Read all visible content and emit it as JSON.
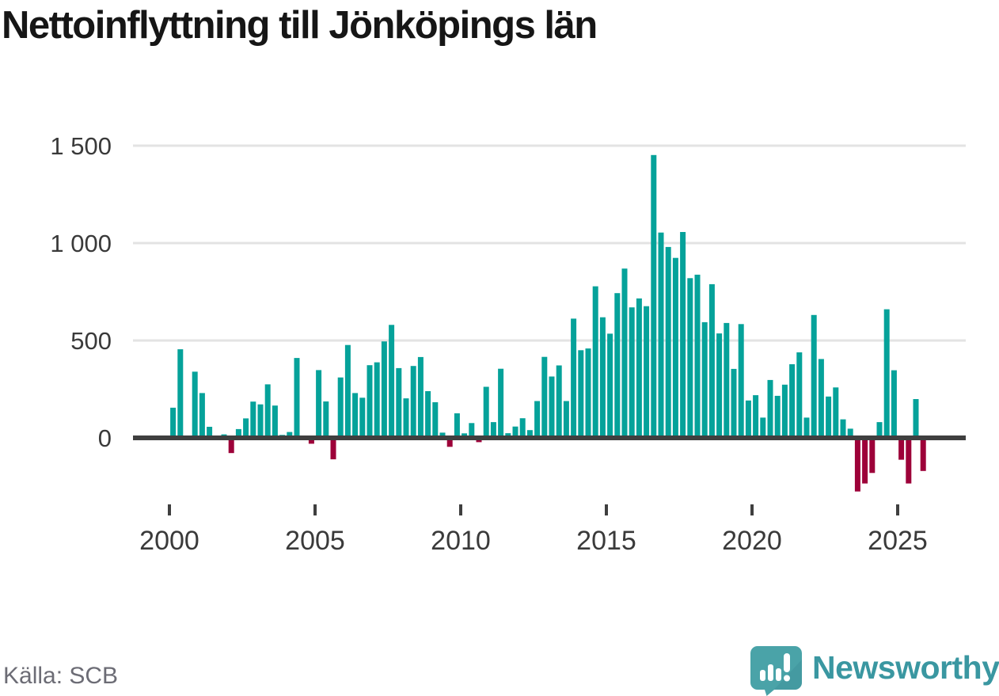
{
  "chart_data": {
    "type": "bar",
    "title": "Nettoinflyttning till Jönköpings län",
    "source": "Källa: SCB",
    "frequency": "quarterly",
    "start_period": "2000Q1",
    "end_period": "2025Q4",
    "values": [
      155,
      455,
      0,
      340,
      230,
      57,
      0,
      18,
      -78,
      45,
      100,
      186,
      172,
      275,
      166,
      15,
      30,
      410,
      -10,
      -30,
      348,
      187,
      -110,
      310,
      477,
      230,
      206,
      373,
      388,
      495,
      580,
      358,
      203,
      369,
      415,
      240,
      183,
      27,
      -46,
      126,
      23,
      76,
      -22,
      262,
      81,
      355,
      24,
      58,
      101,
      40,
      189,
      416,
      315,
      372,
      189,
      612,
      450,
      459,
      778,
      619,
      535,
      743,
      869,
      670,
      716,
      676,
      1452,
      1054,
      980,
      924,
      1057,
      820,
      838,
      594,
      789,
      536,
      590,
      354,
      584,
      192,
      219,
      104,
      297,
      216,
      273,
      378,
      439,
      104,
      631,
      405,
      212,
      259,
      95,
      47,
      -275,
      -234,
      -180,
      81,
      660,
      347,
      -112,
      -234,
      199,
      -170
    ],
    "x_ticks": {
      "values": [
        2000,
        2005,
        2010,
        2015,
        2020,
        2025
      ],
      "labels": [
        "2000",
        "2005",
        "2010",
        "2015",
        "2020",
        "2025"
      ]
    },
    "y_ticks": {
      "values": [
        0,
        500,
        1000,
        1500
      ],
      "labels": [
        "0",
        "500",
        "1 000",
        "1 500"
      ]
    },
    "ylim": [
      -300,
      1500
    ],
    "grid": true,
    "legend": "none",
    "colors": {
      "positive": "#05a29a",
      "negative": "#9d0139",
      "axis": "#3f3f3f",
      "gridline": "#e3e3e3",
      "tick_label": "#3a3a3a"
    }
  },
  "branding": {
    "logo_text": "Newsworthy",
    "logo_text_color": "#3a97a1",
    "logo_mark_color": "#4aa3a8",
    "logo_mark_shade_color": "#3f949a"
  }
}
